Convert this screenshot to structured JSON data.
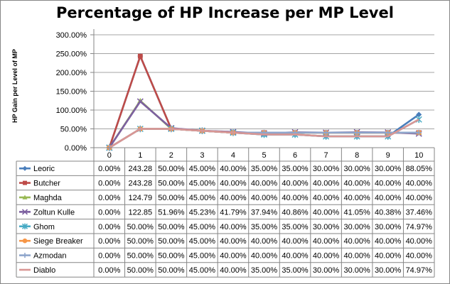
{
  "chart_data": {
    "type": "line",
    "title": "Percentage of HP Increase per MP Level",
    "xlabel": "",
    "ylabel": "HP Gain per Level of MP",
    "ylim": [
      0,
      300
    ],
    "y_ticks": [
      "0.00%",
      "50.00%",
      "100.00%",
      "150.00%",
      "200.00%",
      "250.00%",
      "300.00%"
    ],
    "categories": [
      "0",
      "1",
      "2",
      "3",
      "4",
      "5",
      "6",
      "7",
      "8",
      "9",
      "10"
    ],
    "grid": "horizontal",
    "legend": "data-table",
    "series": [
      {
        "name": "Leoric",
        "color": "#4a7ebb",
        "marker": "diamond",
        "values": [
          0,
          243.28,
          50,
          45,
          40,
          35,
          35,
          30,
          30,
          30,
          88.05
        ],
        "labels": [
          "0.00%",
          "243.28",
          "50.00%",
          "45.00%",
          "40.00%",
          "35.00%",
          "35.00%",
          "30.00%",
          "30.00%",
          "30.00%",
          "88.05%"
        ]
      },
      {
        "name": "Butcher",
        "color": "#be4b48",
        "marker": "square",
        "values": [
          0,
          243.28,
          50,
          45,
          40,
          40,
          40,
          40,
          40,
          40,
          40
        ],
        "labels": [
          "0.00%",
          "243.28",
          "50.00%",
          "45.00%",
          "40.00%",
          "40.00%",
          "40.00%",
          "40.00%",
          "40.00%",
          "40.00%",
          "40.00%"
        ]
      },
      {
        "name": "Maghda",
        "color": "#98b954",
        "marker": "triangle",
        "values": [
          0,
          124.79,
          50,
          45,
          40,
          40,
          40,
          40,
          40,
          40,
          40
        ],
        "labels": [
          "0.00%",
          "124.79",
          "50.00%",
          "45.00%",
          "40.00%",
          "40.00%",
          "40.00%",
          "40.00%",
          "40.00%",
          "40.00%",
          "40.00%"
        ]
      },
      {
        "name": "Zoltun Kulle",
        "color": "#7d60a0",
        "marker": "x",
        "values": [
          0,
          122.85,
          51.96,
          45.23,
          41.79,
          37.94,
          40.86,
          40,
          41.05,
          40.38,
          37.46
        ],
        "labels": [
          "0.00%",
          "122.85",
          "51.96%",
          "45.23%",
          "41.79%",
          "37.94%",
          "40.86%",
          "40.00%",
          "41.05%",
          "40.38%",
          "37.46%"
        ]
      },
      {
        "name": "Ghom",
        "color": "#46aac4",
        "marker": "star",
        "values": [
          0,
          50,
          50,
          45,
          40,
          35,
          35,
          30,
          30,
          30,
          74.97
        ],
        "labels": [
          "0.00%",
          "50.00%",
          "50.00%",
          "45.00%",
          "40.00%",
          "35.00%",
          "35.00%",
          "30.00%",
          "30.00%",
          "30.00%",
          "74.97%"
        ]
      },
      {
        "name": "Siege Breaker",
        "color": "#f79646",
        "marker": "circle",
        "values": [
          0,
          50,
          50,
          45,
          40,
          40,
          40,
          40,
          40,
          40,
          40
        ],
        "labels": [
          "0.00%",
          "50.00%",
          "50.00%",
          "45.00%",
          "40.00%",
          "40.00%",
          "40.00%",
          "40.00%",
          "40.00%",
          "40.00%",
          "40.00%"
        ]
      },
      {
        "name": "Azmodan",
        "color": "#8ea5cb",
        "marker": "plus",
        "values": [
          0,
          50,
          50,
          45,
          40,
          40,
          40,
          40,
          40,
          40,
          40
        ],
        "labels": [
          "0.00%",
          "50.00%",
          "50.00%",
          "45.00%",
          "40.00%",
          "40.00%",
          "40.00%",
          "40.00%",
          "40.00%",
          "40.00%",
          "40.00%"
        ]
      },
      {
        "name": "Diablo",
        "color": "#d99694",
        "marker": "none",
        "values": [
          0,
          50,
          50,
          45,
          40,
          35,
          35,
          30,
          30,
          30,
          74.97
        ],
        "labels": [
          "0.00%",
          "50.00%",
          "50.00%",
          "45.00%",
          "40.00%",
          "35.00%",
          "35.00%",
          "30.00%",
          "30.00%",
          "30.00%",
          "74.97%"
        ]
      }
    ]
  }
}
